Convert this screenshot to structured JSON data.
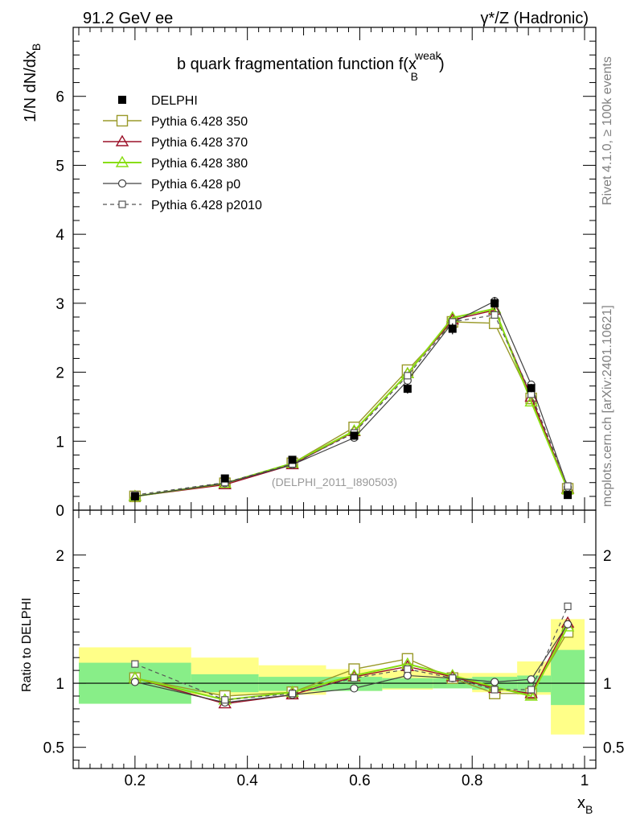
{
  "header": {
    "left": "91.2 GeV ee",
    "right": "γ*/Z (Hadronic)"
  },
  "side_labels": {
    "rivet": "Rivet 4.1.0, ≥ 100k events",
    "mcplots": "mcplots.cern.ch [arXiv:2401.10621]"
  },
  "chart_data": [
    {
      "type": "scatter",
      "title": "b quark fragmentation function f(x_B^weak)",
      "title_main": "b quark fragmentation function f(x",
      "title_sub": "B",
      "title_sup": "weak",
      "title_close": ")",
      "xlabel_main": "x",
      "xlabel_sub": "B",
      "ylabel": "1/N  dN/dx_B",
      "ylabel_main": "1/N  dN/dx",
      "ylabel_sub": "B",
      "watermark": "(DELPHI_2011_I890503)",
      "xlim": [
        0.09,
        1.02
      ],
      "ylim": [
        0,
        7
      ],
      "x_ticks": [
        0.2,
        0.4,
        0.6,
        0.8,
        1.0
      ],
      "x_tick_labels": [
        "0.2",
        "0.4",
        "0.6",
        "0.8",
        "1"
      ],
      "y_ticks": [
        0,
        1,
        2,
        3,
        4,
        5,
        6
      ],
      "y_tick_labels": [
        "0",
        "1",
        "2",
        "3",
        "4",
        "5",
        "6"
      ],
      "legend_position": "top-left",
      "x": [
        0.2,
        0.36,
        0.48,
        0.59,
        0.685,
        0.765,
        0.84,
        0.905,
        0.97
      ],
      "series": [
        {
          "name": "DELPHI",
          "color": "#000000",
          "values": [
            0.2,
            0.46,
            0.73,
            1.08,
            1.76,
            2.63,
            3.0,
            1.77,
            0.22
          ],
          "errors": [
            0.03,
            0.04,
            0.04,
            0.05,
            0.07,
            0.08,
            0.09,
            0.06,
            0.03
          ]
        },
        {
          "name": "Pythia 6.428 350",
          "color": "#9a9a2a",
          "values": [
            0.2,
            0.39,
            0.68,
            1.2,
            2.03,
            2.73,
            2.71,
            1.62,
            0.31
          ]
        },
        {
          "name": "Pythia 6.428 370",
          "color": "#9b1028",
          "values": [
            0.2,
            0.37,
            0.66,
            1.14,
            1.98,
            2.76,
            2.9,
            1.64,
            0.31
          ]
        },
        {
          "name": "Pythia 6.428 380",
          "color": "#88dd10",
          "values": [
            0.2,
            0.39,
            0.68,
            1.15,
            1.98,
            2.79,
            2.92,
            1.57,
            0.3
          ]
        },
        {
          "name": "Pythia 6.428 p0",
          "color": "#404040",
          "values": [
            0.2,
            0.39,
            0.66,
            1.05,
            1.88,
            2.72,
            3.03,
            1.82,
            0.33
          ]
        },
        {
          "name": "Pythia 6.428 p2010",
          "color": "#555555",
          "values": [
            0.22,
            0.4,
            0.67,
            1.12,
            1.95,
            2.73,
            2.83,
            1.68,
            0.35
          ]
        }
      ]
    },
    {
      "type": "scatter",
      "ylabel": "Ratio to DELPHI",
      "xlim": [
        0.09,
        1.02
      ],
      "ylim": [
        0.335,
        2.35
      ],
      "y_ticks": [
        0.5,
        1,
        2
      ],
      "y_tick_labels": [
        "0.5",
        "1",
        "2"
      ],
      "x": [
        0.2,
        0.36,
        0.48,
        0.59,
        0.685,
        0.765,
        0.84,
        0.905,
        0.97
      ],
      "bin_edges": [
        0.1,
        0.3,
        0.42,
        0.54,
        0.64,
        0.73,
        0.8,
        0.88,
        0.94,
        1.0
      ],
      "band_stat_up": [
        0.16,
        0.07,
        0.05,
        0.05,
        0.04,
        0.04,
        0.05,
        0.06,
        0.26
      ],
      "band_stat_dn": [
        0.16,
        0.07,
        0.06,
        0.06,
        0.04,
        0.04,
        0.05,
        0.07,
        0.17
      ],
      "band_tot_up": [
        0.28,
        0.2,
        0.14,
        0.11,
        0.1,
        0.08,
        0.08,
        0.17,
        0.5
      ],
      "band_tot_dn": [
        0.16,
        0.09,
        0.09,
        0.06,
        0.05,
        0.04,
        0.07,
        0.09,
        0.4
      ],
      "series": [
        {
          "name": "Pythia 6.428 350",
          "color": "#9a9a2a",
          "values": [
            1.04,
            0.9,
            0.93,
            1.11,
            1.19,
            1.04,
            0.92,
            0.92,
            1.4
          ]
        },
        {
          "name": "Pythia 6.428 370",
          "color": "#9b1028",
          "values": [
            1.04,
            0.84,
            0.91,
            1.05,
            1.13,
            1.05,
            0.96,
            0.92,
            1.47
          ]
        },
        {
          "name": "Pythia 6.428 380",
          "color": "#88dd10",
          "values": [
            1.04,
            0.87,
            0.93,
            1.06,
            1.15,
            1.06,
            0.97,
            0.9,
            1.44
          ]
        },
        {
          "name": "Pythia 6.428 p0",
          "color": "#404040",
          "values": [
            1.01,
            0.85,
            0.91,
            0.96,
            1.06,
            1.04,
            1.01,
            1.03,
            1.46
          ]
        },
        {
          "name": "Pythia 6.428 p2010",
          "color": "#555555",
          "values": [
            1.15,
            0.87,
            0.92,
            1.04,
            1.11,
            1.04,
            0.95,
            0.95,
            1.6
          ]
        }
      ]
    }
  ]
}
